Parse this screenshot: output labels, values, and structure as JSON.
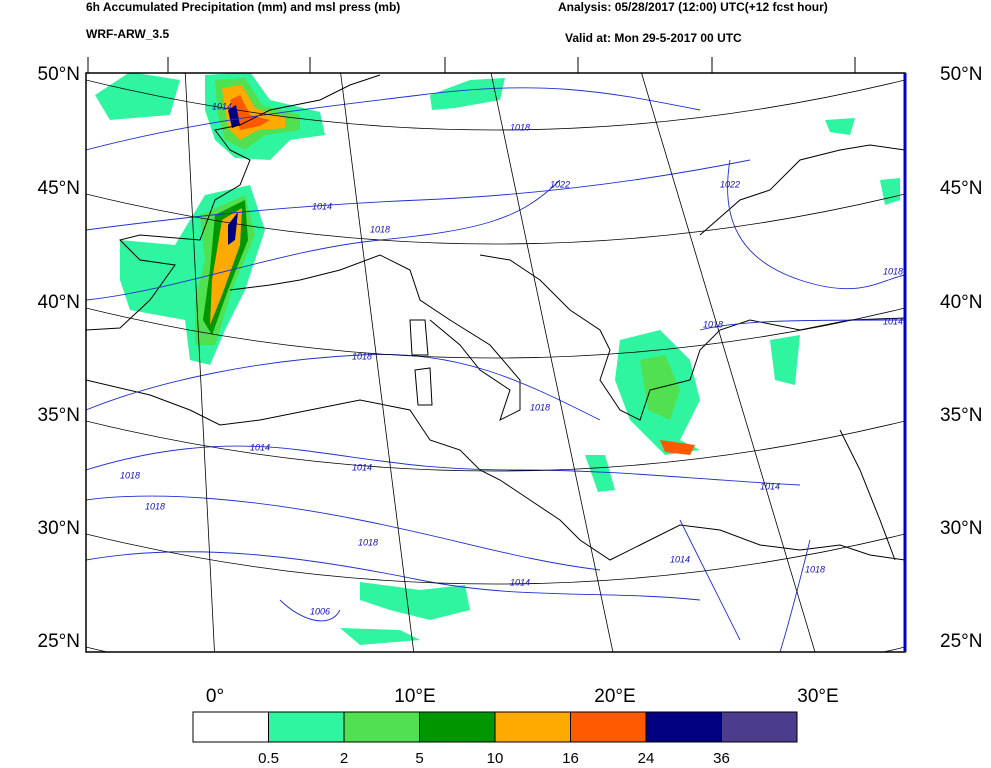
{
  "header": {
    "title": "6h Accumulated Precipitation (mm) and msl press (mb)",
    "model": "WRF-ARW_3.5",
    "analysis": "Analysis: 05/28/2017 (12:00) UTC(+12 fcst hour)",
    "valid": "Valid at: Mon 29-5-2017 00 UTC"
  },
  "map": {
    "lat_labels": [
      "50°N",
      "45°N",
      "40°N",
      "35°N",
      "30°N",
      "25°N"
    ],
    "lon_labels": [
      "0°",
      "10°E",
      "20°E",
      "30°E"
    ],
    "isobar_labels": [
      "1014",
      "1018",
      "1022",
      "1022",
      "1014",
      "1018",
      "1018",
      "1014",
      "1018",
      "1018",
      "1018",
      "1014",
      "1014",
      "1018",
      "1018",
      "1018",
      "1014",
      "1014",
      "1014",
      "1018",
      "1006"
    ]
  },
  "colorbar": {
    "bounds": [
      0.5,
      2,
      5,
      10,
      16,
      24,
      36
    ],
    "colors": [
      "#ffffff",
      "#2ff5a0",
      "#50e050",
      "#009600",
      "#ffaa00",
      "#ff5a00",
      "#000080",
      "#4b3c8c"
    ]
  }
}
